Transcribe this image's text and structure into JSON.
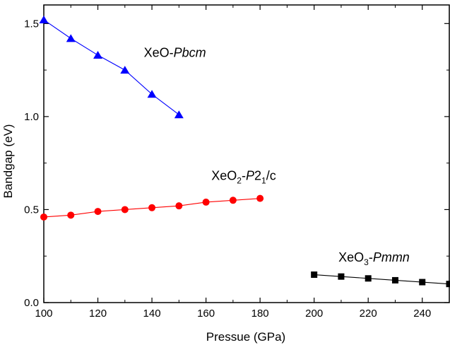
{
  "chart_data": {
    "type": "line",
    "xlabel": "Pressue (GPa)",
    "ylabel": "Bandgap (eV)",
    "xlim": [
      100,
      250
    ],
    "ylim": [
      0.0,
      1.6
    ],
    "xticks": [
      100,
      120,
      140,
      160,
      180,
      200,
      220,
      240
    ],
    "yticks": [
      0.0,
      0.5,
      1.0,
      1.5
    ],
    "xtick_labels": [
      "100",
      "120",
      "140",
      "160",
      "180",
      "200",
      "220",
      "240"
    ],
    "ytick_labels": [
      "0.0",
      "0.5",
      "1.0",
      "1.5"
    ],
    "grid": false,
    "series": [
      {
        "name": "XeO-Pbcm",
        "color": "#0000ff",
        "marker": "triangle",
        "x": [
          100,
          110,
          120,
          130,
          140,
          150
        ],
        "y": [
          1.52,
          1.42,
          1.33,
          1.25,
          1.12,
          1.01
        ]
      },
      {
        "name": "XeO2-P21/c",
        "color": "#ff0000",
        "marker": "circle",
        "x": [
          100,
          110,
          120,
          130,
          140,
          150,
          160,
          170,
          180
        ],
        "y": [
          0.46,
          0.47,
          0.49,
          0.5,
          0.51,
          0.52,
          0.54,
          0.55,
          0.56
        ]
      },
      {
        "name": "XeO3-Pmmn",
        "color": "#000000",
        "marker": "square",
        "x": [
          200,
          210,
          220,
          230,
          240,
          250
        ],
        "y": [
          0.15,
          0.14,
          0.13,
          0.12,
          0.11,
          0.1
        ]
      }
    ],
    "annotations": [
      {
        "series": "XeO-Pbcm",
        "base": "XeO-",
        "italic": "Pbcm",
        "x": 137,
        "y": 1.32
      },
      {
        "series": "XeO2-P21/c",
        "base": "XeO",
        "sub": "2",
        "dash": "-",
        "italic": "P",
        "rest": "2",
        "sub2": "1",
        "tail": "/c",
        "x": 162,
        "y": 0.66
      },
      {
        "series": "XeO3-Pmmn",
        "base": "XeO",
        "sub": "3",
        "dash": "-",
        "italic": "Pmmn",
        "x": 209,
        "y": 0.22
      }
    ]
  }
}
